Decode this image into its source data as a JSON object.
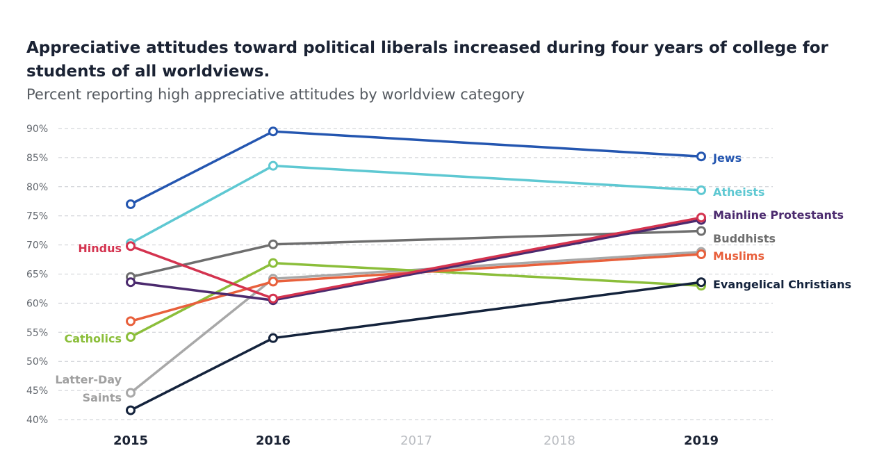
{
  "title": "Appreciative attitudes toward political liberals increased during four years of college for students of all worldviews.",
  "subtitle": "Percent reporting high appreciative attitudes by worldview category",
  "chart_data": {
    "type": "line",
    "x": [
      2015,
      2016,
      2017,
      2018,
      2019
    ],
    "x_tick_labels": [
      "2015",
      "2016",
      "2017",
      "2018",
      "2019"
    ],
    "x_tick_emphasis": [
      true,
      true,
      false,
      false,
      true
    ],
    "y_tick_labels": [
      "90%",
      "85%",
      "80%",
      "75%",
      "70%",
      "65%",
      "60%",
      "55%",
      "50%",
      "45%",
      "40%"
    ],
    "ylim": [
      40,
      90
    ],
    "grid": true,
    "series": [
      {
        "name": "Jews",
        "label": [
          "Jews"
        ],
        "color": "#2456b0",
        "label_color": "#2456b0",
        "x": [
          2015,
          2016,
          2019
        ],
        "values": [
          77,
          89.5,
          85.2
        ]
      },
      {
        "name": "Atheists",
        "label": [
          "Atheists"
        ],
        "color": "#5ec8d2",
        "label_color": "#5ec8d2",
        "x": [
          2015,
          2016,
          2019
        ],
        "values": [
          70.3,
          83.6,
          79.4
        ]
      },
      {
        "name": "Mainline Protestants",
        "label": [
          "Mainline Protestants"
        ],
        "color": "#4b2a6e",
        "label_color": "#4b2a6e",
        "x": [
          2015,
          2016,
          2019
        ],
        "values": [
          63.6,
          60.5,
          74.3
        ]
      },
      {
        "name": "Buddhists",
        "label": [
          "Buddhists"
        ],
        "color": "#6e6e6e",
        "label_color": "#6e6e6e",
        "x": [
          2015,
          2016,
          2019
        ],
        "values": [
          64.5,
          70.1,
          72.4
        ]
      },
      {
        "name": "Muslims",
        "label": [
          "Muslims"
        ],
        "color": "#e8603c",
        "label_color": "#e8603c",
        "x": [
          2015,
          2016,
          2019
        ],
        "values": [
          56.9,
          63.7,
          68.4
        ]
      },
      {
        "name": "Evangelical Christians",
        "label": [
          "Evangelical Christians"
        ],
        "color": "#14233c",
        "label_color": "#14233c",
        "x": [
          2015,
          2016,
          2019
        ],
        "values": [
          41.6,
          54.0,
          63.6
        ]
      },
      {
        "name": "Hindus",
        "label": [
          "Hindus"
        ],
        "color": "#d4334f",
        "label_color": "#d4334f",
        "x": [
          2015,
          2016,
          2019
        ],
        "values": [
          69.8,
          60.8,
          74.7
        ]
      },
      {
        "name": "Catholics",
        "label": [
          "Catholics"
        ],
        "color": "#8bbe3a",
        "label_color": "#8bbe3a",
        "x": [
          2015,
          2016,
          2019
        ],
        "values": [
          54.2,
          66.9,
          63.0
        ]
      },
      {
        "name": "Latter-Day Saints",
        "label": [
          "Latter-Day",
          "Saints"
        ],
        "color": "#a8a8a8",
        "label_color": "#a0a0a0",
        "x": [
          2015,
          2016,
          2019
        ],
        "values": [
          44.6,
          64.2,
          68.8
        ]
      }
    ]
  }
}
